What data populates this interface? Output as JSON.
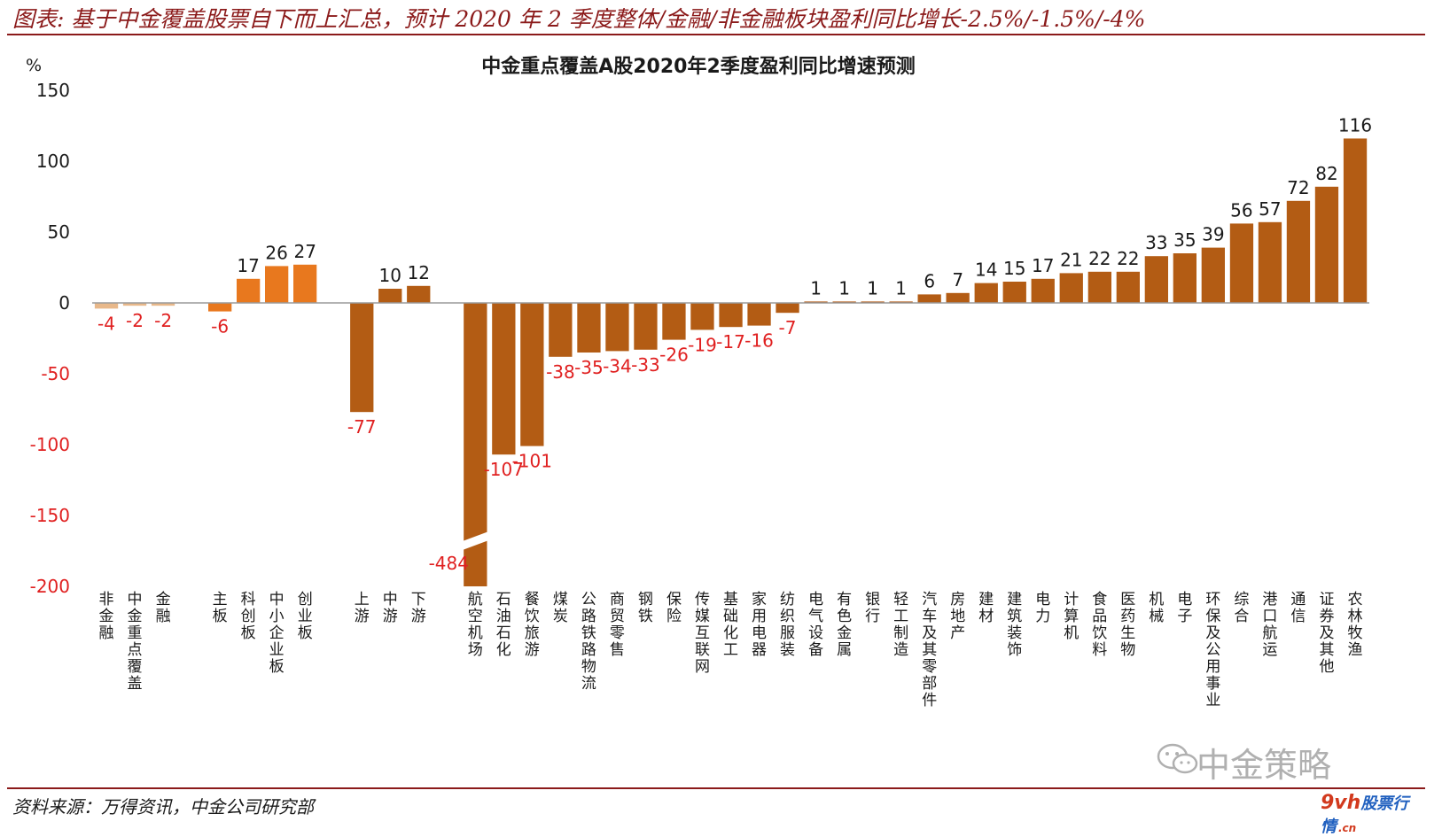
{
  "header": {
    "title": "图表: 基于中金覆盖股票自下而上汇总，预计 2020 年 2 季度整体/金融/非金融板块盈利同比增长-2.5%/-1.5%/-4%"
  },
  "source": "资料来源：万得资讯，中金公司研究部",
  "watermark": {
    "text": "中金策略",
    "icon": "wechat-icon",
    "site_prefix": "9vh",
    "site_suffix": "股票行情",
    "site_cn": ".cn"
  },
  "colors": {
    "bar_main": "#b35c14",
    "bar_light": "#e8b88a",
    "bar_board": "#e8781e",
    "neg_label": "#e02020",
    "axis_neg": "#e02020",
    "axis_pos": "#1a1a1a"
  },
  "chart_data": {
    "type": "bar",
    "title": "中金重点覆盖A股2020年2季度盈利同比增速预测",
    "ylabel": "%",
    "ylim": [
      -200,
      150
    ],
    "yticks": [
      150,
      100,
      50,
      0,
      -50,
      -100,
      -150,
      -200
    ],
    "axis_break": true,
    "categories": [
      "非金融",
      "中金重点覆盖",
      "金融",
      "",
      "主板",
      "科创板",
      "中小企业板",
      "创业板",
      "",
      "上游",
      "中游",
      "下游",
      "",
      "航空机场",
      "石油石化",
      "餐饮旅游",
      "煤炭",
      "公路铁路物流",
      "商贸零售",
      "钢铁",
      "保险",
      "传媒互联网",
      "基础化工",
      "家用电器",
      "纺织服装",
      "电气设备",
      "有色金属",
      "银行",
      "轻工制造",
      "汽车及其零部件",
      "房地产",
      "建材",
      "建筑装饰",
      "电力",
      "计算机",
      "食品饮料",
      "医药生物",
      "机械",
      "电子",
      "环保及公用事业",
      "综合",
      "港口航运",
      "通信",
      "证券及其他",
      "农林牧渔"
    ],
    "values": [
      -4,
      -2,
      -2,
      null,
      -6,
      17,
      26,
      27,
      null,
      -77,
      10,
      12,
      null,
      -484,
      -107,
      -101,
      -38,
      -35,
      -34,
      -33,
      -26,
      -19,
      -17,
      -16,
      -7,
      1,
      1,
      1,
      1,
      6,
      7,
      14,
      15,
      17,
      21,
      22,
      22,
      33,
      35,
      39,
      56,
      57,
      72,
      82,
      116
    ],
    "groups": [
      "light",
      "light",
      "light",
      null,
      "board",
      "board",
      "board",
      "board",
      null,
      "main",
      "main",
      "main",
      null,
      "main",
      "main",
      "main",
      "main",
      "main",
      "main",
      "main",
      "main",
      "main",
      "main",
      "main",
      "main",
      "main",
      "main",
      "main",
      "main",
      "main",
      "main",
      "main",
      "main",
      "main",
      "main",
      "main",
      "main",
      "main",
      "main",
      "main",
      "main",
      "main",
      "main",
      "main",
      "main"
    ],
    "data_labels": [
      "-4",
      "-2",
      "-2",
      "",
      "-6",
      "17",
      "26",
      "27",
      "",
      "-77",
      "10",
      "12",
      "",
      "-484",
      "-107",
      "-101",
      "-38",
      "-35",
      "-34",
      "-33",
      "-26",
      "-19",
      "-17",
      "-16",
      "-7",
      "1",
      "1",
      "1",
      "1",
      "6",
      "7",
      "14",
      "15",
      "17",
      "21",
      "22",
      "22",
      "33",
      "35",
      "39",
      "56",
      "57",
      "72",
      "82",
      "116"
    ],
    "grid": false,
    "legend": "none"
  }
}
